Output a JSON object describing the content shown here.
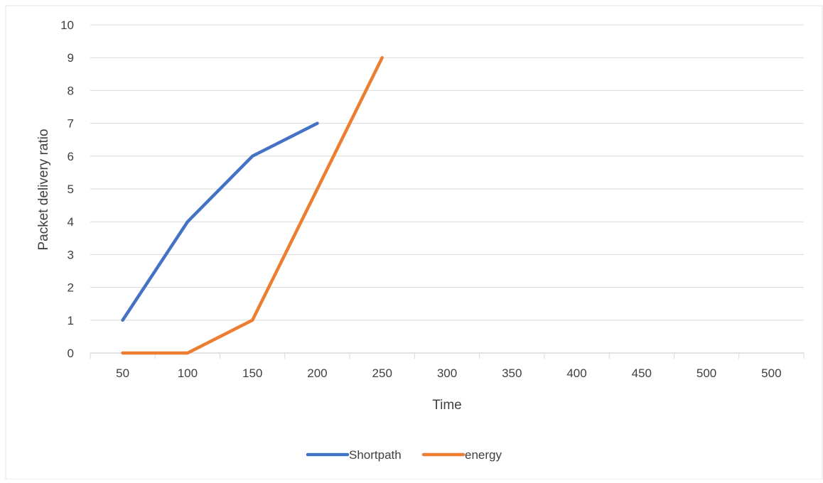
{
  "chart_data": {
    "type": "line",
    "categories": [
      "50",
      "100",
      "150",
      "200",
      "250",
      "300",
      "350",
      "400",
      "450",
      "500",
      "500"
    ],
    "series": [
      {
        "name": "Shortpath",
        "color": "#4472C4",
        "values": [
          1,
          4,
          6,
          7,
          null,
          null,
          null,
          null,
          null,
          null,
          null
        ]
      },
      {
        "name": "energy",
        "color": "#ED7D31",
        "values": [
          0,
          0,
          1,
          5,
          9,
          null,
          null,
          null,
          null,
          null,
          null
        ]
      }
    ],
    "xlabel": "Time",
    "ylabel": "Packet delivery ratio",
    "ylim": [
      0,
      10
    ],
    "yticks": [
      "0",
      "1",
      "2",
      "3",
      "4",
      "5",
      "6",
      "7",
      "8",
      "9",
      "10"
    ],
    "grid": true,
    "gridline_color": "#D9D9D9",
    "legend_position": "bottom"
  }
}
